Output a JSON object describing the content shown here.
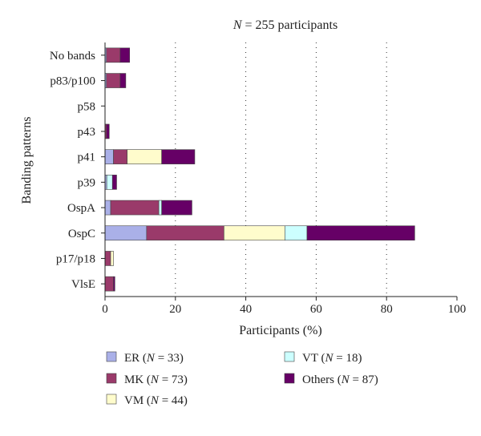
{
  "chart_data": {
    "type": "bar",
    "orientation": "horizontal",
    "stacked": true,
    "title": "N = 255 participants",
    "xlabel": "Participants (%)",
    "ylabel": "Banding patterns",
    "xlim": [
      0,
      100
    ],
    "xticks": [
      0,
      20,
      40,
      60,
      80,
      100
    ],
    "grid": "vertical dotted lines at x ticks",
    "legend_position": "bottom",
    "categories": [
      "No bands",
      "p83/p100",
      "p58",
      "p43",
      "p41",
      "p39",
      "OspA",
      "OspC",
      "p17/p18",
      "VlsE"
    ],
    "series": [
      {
        "name": "ER",
        "n_label": "N = 33",
        "color": "#aab0e8",
        "values": [
          0.4,
          0.4,
          0.0,
          0.0,
          2.4,
          0.5,
          1.6,
          11.8,
          0.0,
          0.0
        ]
      },
      {
        "name": "MK",
        "n_label": "N = 73",
        "color": "#9a3a6a",
        "values": [
          3.9,
          3.9,
          0.0,
          0.4,
          3.9,
          0.0,
          13.7,
          22.0,
          1.6,
          2.4
        ]
      },
      {
        "name": "VM",
        "n_label": "N = 44",
        "color": "#fffccc",
        "values": [
          0.0,
          0.0,
          0.0,
          0.0,
          9.8,
          0.0,
          0.0,
          17.3,
          0.8,
          0.0
        ]
      },
      {
        "name": "VT",
        "n_label": "N = 18",
        "color": "#ccffff",
        "values": [
          0.0,
          0.0,
          0.0,
          0.0,
          0.0,
          1.6,
          0.8,
          6.3,
          0.0,
          0.0
        ]
      },
      {
        "name": "Others",
        "n_label": "N = 87",
        "color": "#660066",
        "values": [
          2.7,
          1.6,
          0.0,
          0.8,
          9.4,
          1.2,
          8.6,
          30.6,
          0.0,
          0.4
        ]
      }
    ]
  }
}
